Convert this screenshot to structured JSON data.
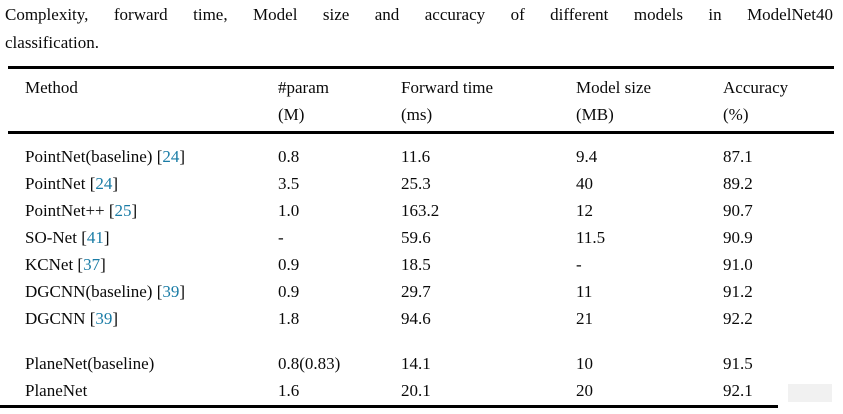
{
  "caption": {
    "line1": "Complexity, forward time, Model size and accuracy of different models in ModelNet40",
    "line2": "classification."
  },
  "table": {
    "columns": [
      {
        "label": "Method",
        "unit": ""
      },
      {
        "label": "#param",
        "unit": "(M)"
      },
      {
        "label": "Forward time",
        "unit": "(ms)"
      },
      {
        "label": "Model size",
        "unit": "(MB)"
      },
      {
        "label": "Accuracy",
        "unit": "(%)"
      }
    ],
    "rows": [
      {
        "method": "PointNet(baseline)",
        "ref": "24",
        "param": "0.8",
        "forward_time": "11.6",
        "model_size": "9.4",
        "accuracy": "87.1",
        "group": 1
      },
      {
        "method": "PointNet",
        "ref": "24",
        "param": "3.5",
        "forward_time": "25.3",
        "model_size": "40",
        "accuracy": "89.2",
        "group": 1
      },
      {
        "method": "PointNet++",
        "ref": "25",
        "param": "1.0",
        "forward_time": "163.2",
        "model_size": "12",
        "accuracy": "90.7",
        "group": 1
      },
      {
        "method": "SO-Net",
        "ref": "41",
        "param": "-",
        "forward_time": "59.6",
        "model_size": "11.5",
        "accuracy": "90.9",
        "group": 1
      },
      {
        "method": "KCNet",
        "ref": "37",
        "param": "0.9",
        "forward_time": "18.5",
        "model_size": "-",
        "accuracy": "91.0",
        "group": 1
      },
      {
        "method": "DGCNN(baseline)",
        "ref": "39",
        "param": "0.9",
        "forward_time": "29.7",
        "model_size": "11",
        "accuracy": "91.2",
        "group": 1
      },
      {
        "method": "DGCNN",
        "ref": "39",
        "param": "1.8",
        "forward_time": "94.6",
        "model_size": "21",
        "accuracy": "92.2",
        "group": 1
      },
      {
        "method": "PlaneNet(baseline)",
        "ref": null,
        "param": "0.8(0.83)",
        "forward_time": "14.1",
        "model_size": "10",
        "accuracy": "91.5",
        "group": 2
      },
      {
        "method": "PlaneNet",
        "ref": null,
        "param": "1.6",
        "forward_time": "20.1",
        "model_size": "20",
        "accuracy": "92.1",
        "group": 2
      }
    ]
  },
  "colors": {
    "citation": "#1a7ca6",
    "text": "#0a0a0a",
    "rule": "#000000"
  }
}
